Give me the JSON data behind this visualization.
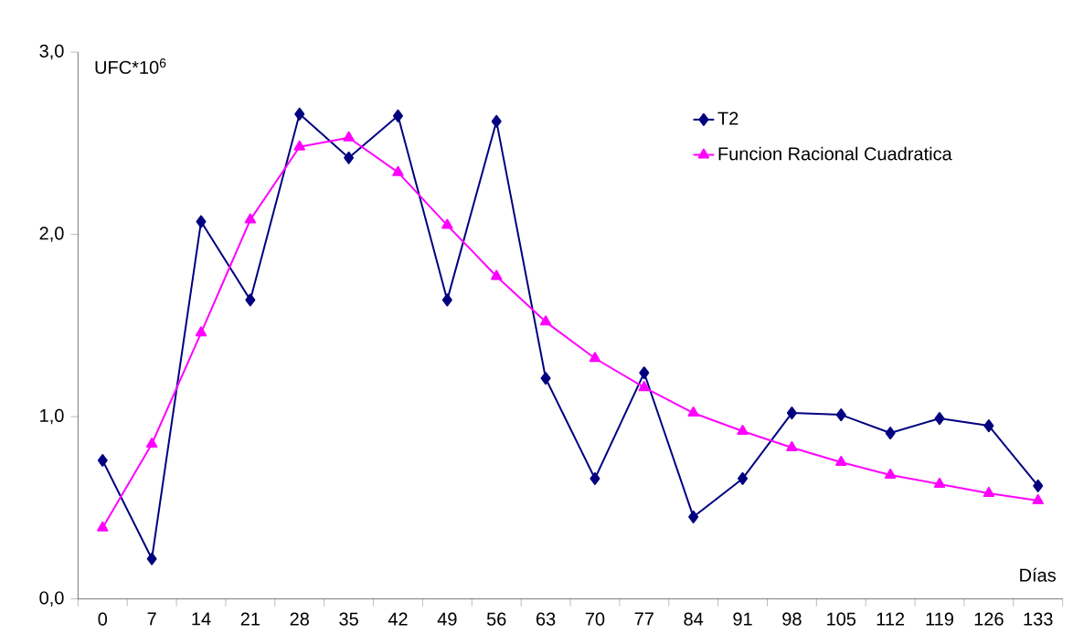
{
  "chart_data": {
    "type": "line",
    "xlabel": "Días",
    "ylabel": "UFC*10$^{6}$",
    "categories": [
      "0",
      "7",
      "14",
      "21",
      "28",
      "35",
      "42",
      "49",
      "56",
      "63",
      "70",
      "77",
      "84",
      "91",
      "98",
      "105",
      "112",
      "119",
      "126",
      "133"
    ],
    "series": [
      {
        "name": "T2",
        "color": "#000080",
        "marker": "diamond",
        "values": [
          0.76,
          0.22,
          2.07,
          1.64,
          2.66,
          2.42,
          2.65,
          1.64,
          2.62,
          1.21,
          0.66,
          1.24,
          0.45,
          0.66,
          1.02,
          1.01,
          0.91,
          0.99,
          0.95,
          0.62
        ]
      },
      {
        "name": "Funcion Racional Cuadratica",
        "color": "#ff00ff",
        "marker": "triangle",
        "values": [
          0.39,
          0.85,
          1.46,
          2.08,
          2.48,
          2.53,
          2.34,
          2.05,
          1.77,
          1.52,
          1.32,
          1.16,
          1.02,
          0.92,
          0.83,
          0.75,
          0.68,
          0.63,
          0.58,
          0.54
        ]
      }
    ],
    "ylim": [
      0,
      3
    ],
    "yticks": [
      {
        "value": 0,
        "label": "0,0"
      },
      {
        "value": 1,
        "label": "1,0"
      },
      {
        "value": 2,
        "label": "2,0"
      },
      {
        "value": 3,
        "label": "3,0"
      }
    ],
    "line_style": "solid",
    "grid": false,
    "legend": "top right"
  }
}
